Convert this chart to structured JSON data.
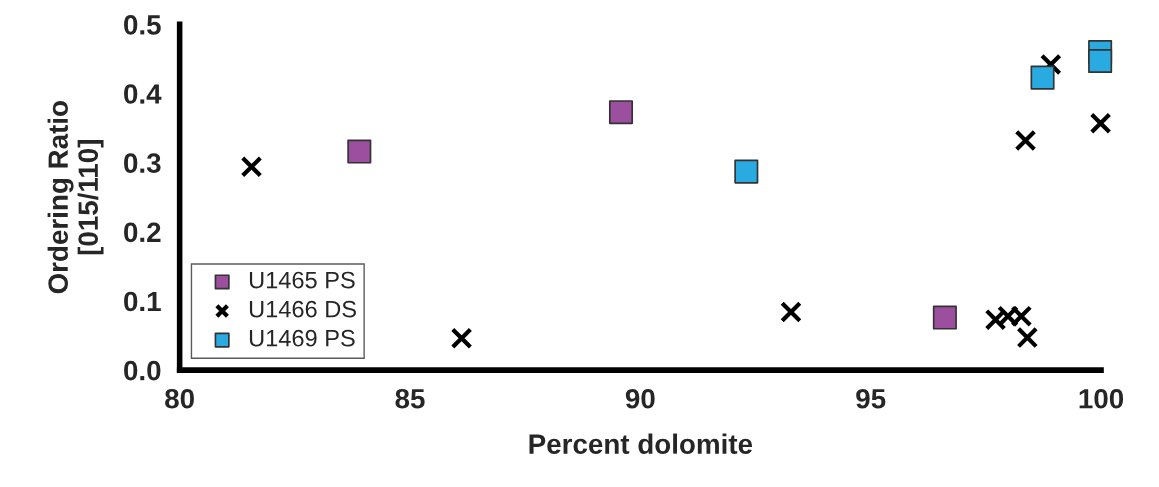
{
  "chart_data": {
    "type": "scatter",
    "xlabel": "Percent dolomite",
    "ylabel": "Ordering Ratio\n[015/110]",
    "xlim": [
      80,
      100
    ],
    "xticks": [
      80,
      85,
      90,
      95,
      100
    ],
    "ylim": [
      0,
      0.5
    ],
    "yticks": [
      {
        "value": 0,
        "label": "0.0"
      },
      0.1,
      0.2,
      0.3,
      0.4,
      0.5
    ],
    "grid": false,
    "legend": "bottom left",
    "series": [
      {
        "name": "U1465 PS",
        "color": "#9b4f9e",
        "marker": "square",
        "x": [
          83.9,
          89.58,
          96.61
        ],
        "values": [
          0.316,
          0.373,
          0.076
        ]
      },
      {
        "name": "U1466 DS",
        "color": "#000000",
        "marker": "cross",
        "x": [
          81.56,
          86.12,
          93.27,
          97.71,
          97.98,
          98.27,
          98.4,
          98.36,
          98.91,
          99.99
        ],
        "values": [
          0.294,
          0.046,
          0.084,
          0.073,
          0.078,
          0.078,
          0.047,
          0.332,
          0.442,
          0.357
        ]
      },
      {
        "name": "U1469 PS",
        "color": "#29abe2",
        "marker": "square",
        "x": [
          92.3,
          98.73,
          99.98,
          99.98
        ],
        "values": [
          0.287,
          0.423,
          0.46,
          0.447
        ]
      }
    ]
  }
}
